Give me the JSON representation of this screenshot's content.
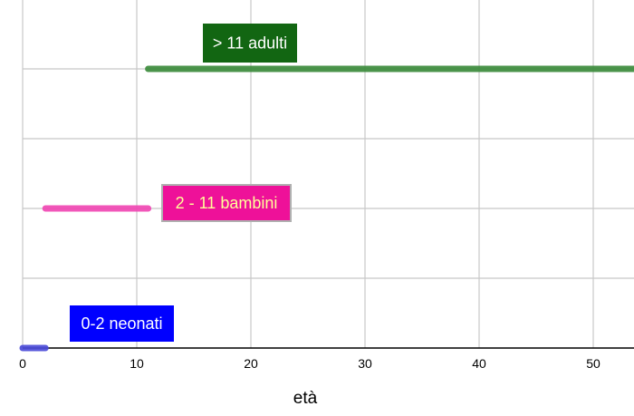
{
  "chart_data": {
    "type": "line",
    "title": "",
    "xlabel": "età",
    "ylabel": "",
    "xlim": [
      0,
      54
    ],
    "ylim": [
      0,
      2.4
    ],
    "grid": true,
    "x_ticks": [
      "0",
      "10",
      "20",
      "30",
      "40",
      "50"
    ],
    "series": [
      {
        "label": "0-2 neonati",
        "level": 0,
        "x": [
          0,
          2
        ],
        "color": "#4b4bd9",
        "label_bg": "#0000ff",
        "label_fg": "#ffffff"
      },
      {
        "label": "2 - 11 bambini",
        "level": 1,
        "x": [
          2,
          11
        ],
        "color": "#f048b4",
        "label_bg": "#ee1199",
        "label_fg": "#ffff99"
      },
      {
        "label": "> 11 adulti",
        "level": 2,
        "x": [
          11,
          54
        ],
        "color": "#3c8c3c",
        "label_bg": "#126612",
        "label_fg": "#ffffff"
      }
    ]
  }
}
